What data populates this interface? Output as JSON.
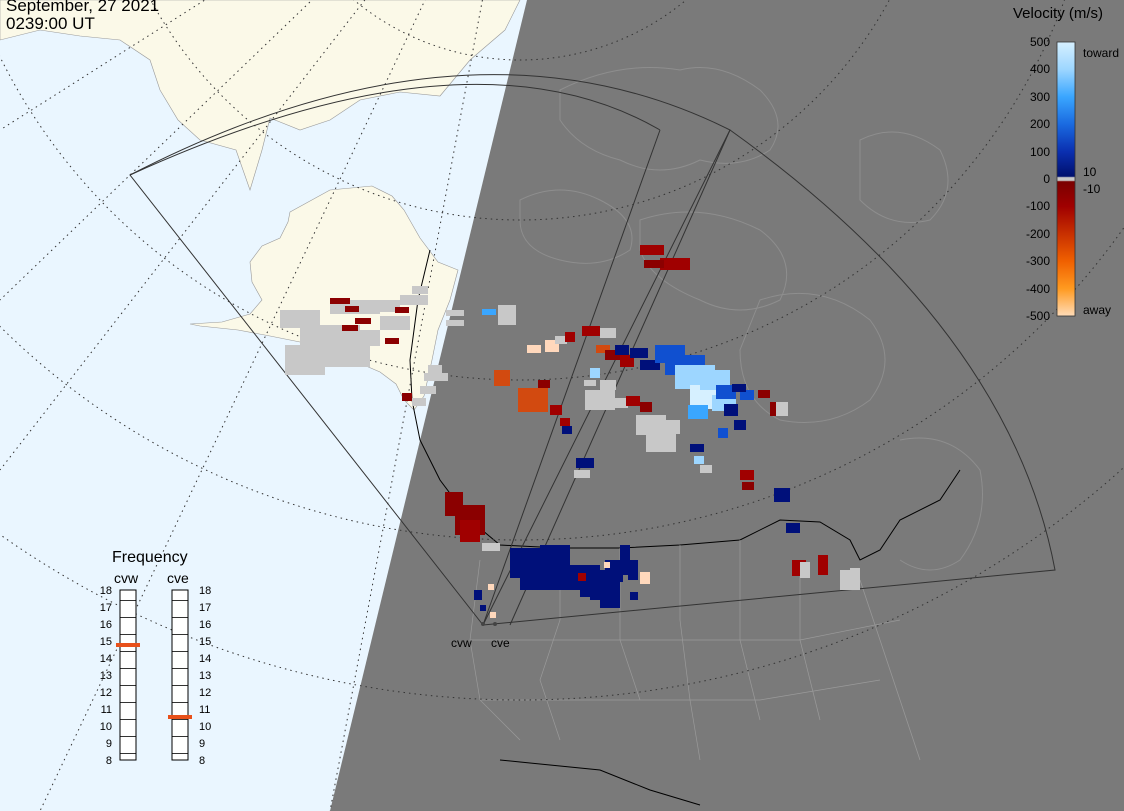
{
  "header": {
    "date": "September, 27 2021",
    "time": "0239:00 UT"
  },
  "colors": {
    "ocean": "#eaf6ff",
    "land": "#fbf9e8",
    "night": "#7a7a7a",
    "ground_scatter": "#c8c8c8",
    "grid": "#333333",
    "borders": "#000000",
    "indicator": "#e8501a"
  },
  "colorbar": {
    "title": "Velocity (m/s)",
    "ticks": [
      "500",
      "400",
      "300",
      "200",
      "100",
      "0",
      "-100",
      "-200",
      "-300",
      "-400",
      "-500"
    ],
    "toward_label": "toward",
    "away_label": "away",
    "threshold_pos": "10",
    "threshold_neg": "-10",
    "scale": [
      {
        "v": 500,
        "color": "#d6f0ff"
      },
      {
        "v": 400,
        "color": "#9dd6ff"
      },
      {
        "v": 300,
        "color": "#3aa6ff"
      },
      {
        "v": 200,
        "color": "#1a6ae0"
      },
      {
        "v": 100,
        "color": "#0a2fb0"
      },
      {
        "v": 10,
        "color": "#00106e"
      },
      {
        "v": -10,
        "color": "#7a0000"
      },
      {
        "v": -100,
        "color": "#a00000"
      },
      {
        "v": -200,
        "color": "#c83000"
      },
      {
        "v": -300,
        "color": "#f06000"
      },
      {
        "v": -400,
        "color": "#ff9a20"
      },
      {
        "v": -500,
        "color": "#ffdcb8"
      }
    ]
  },
  "frequency_panel": {
    "title": "Frequency",
    "radars": [
      {
        "code": "cvw",
        "freq_mhz": 14.8
      },
      {
        "code": "cve",
        "freq_mhz": 10.6
      }
    ],
    "scale": [
      "18",
      "17",
      "16",
      "15",
      "14",
      "13",
      "12",
      "11",
      "10",
      "9",
      "8"
    ]
  },
  "radar_sites": [
    {
      "code": "cvw"
    },
    {
      "code": "cve"
    }
  ]
}
